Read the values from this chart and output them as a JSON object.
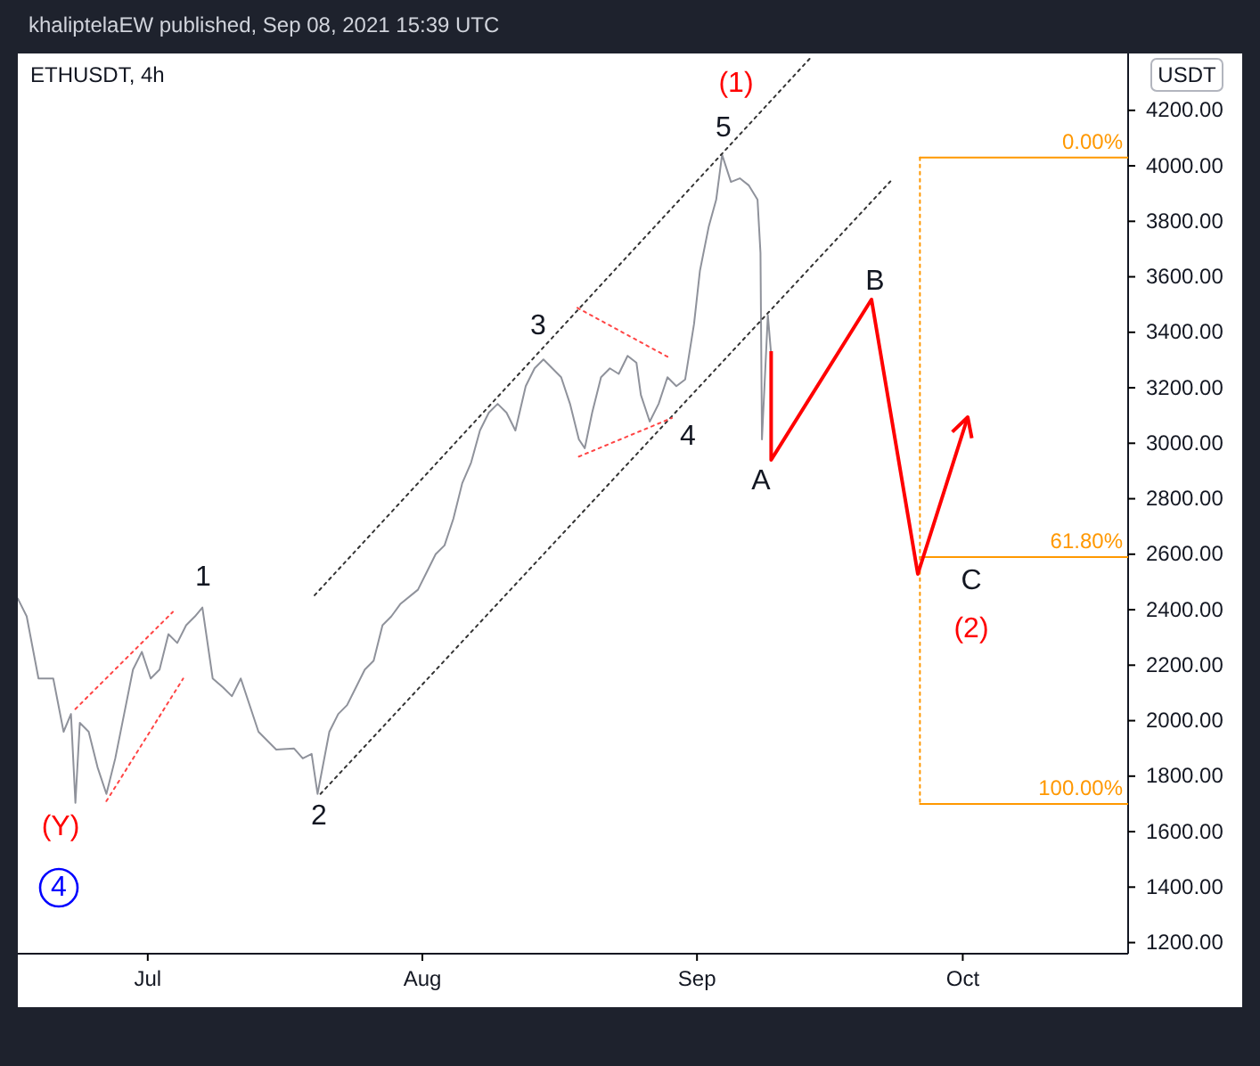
{
  "chart_data": {
    "type": "line",
    "title": "ETHUSDT, 4h",
    "ylabel": "USDT",
    "xlim": [
      "2021-06-16T08:00",
      "2021-10-19T16:00"
    ],
    "xticks": [
      {
        "value": "2021-07-01",
        "label": "Jul"
      },
      {
        "value": "2021-08-01",
        "label": "Aug"
      },
      {
        "value": "2021-09-01",
        "label": "Sep"
      },
      {
        "value": "2021-10-01",
        "label": "Oct"
      }
    ],
    "ylim": [
      1160,
      4405
    ],
    "yticks": [
      {
        "value": 1200,
        "label": "1200.00"
      },
      {
        "value": 1400,
        "label": "1400.00"
      },
      {
        "value": 1600,
        "label": "1600.00"
      },
      {
        "value": 1800,
        "label": "1800.00"
      },
      {
        "value": 2000,
        "label": "2000.00"
      },
      {
        "value": 2200,
        "label": "2200.00"
      },
      {
        "value": 2400,
        "label": "2400.00"
      },
      {
        "value": 2600,
        "label": "2600.00"
      },
      {
        "value": 2800,
        "label": "2800.00"
      },
      {
        "value": 3000,
        "label": "3000.00"
      },
      {
        "value": 3200,
        "label": "3200.00"
      },
      {
        "value": 3400,
        "label": "3400.00"
      },
      {
        "value": 3600,
        "label": "3600.00"
      },
      {
        "value": 3800,
        "label": "3800.00"
      },
      {
        "value": 4000,
        "label": "4000.00"
      },
      {
        "value": 4200,
        "label": "4200.00"
      }
    ],
    "grid": false,
    "legend": false,
    "marker": "none",
    "series": [
      {
        "color": "#8f929b",
        "line_style": "solid",
        "x": [
          "2021-06-16T08:00",
          "2021-06-17T08:00",
          "2021-06-18T16:00",
          "2021-06-20T08:00",
          "2021-06-21T12:00",
          "2021-06-22T08:00",
          "2021-06-22T20:00",
          "2021-06-23T08:00",
          "2021-06-24T08:00",
          "2021-06-25T08:00",
          "2021-06-26T08:00",
          "2021-06-27T08:00",
          "2021-06-28T08:00",
          "2021-06-29T08:00",
          "2021-06-30T08:00",
          "2021-07-01T08:00",
          "2021-07-02T08:00",
          "2021-07-03T08:00",
          "2021-07-04T08:00",
          "2021-07-05T08:00",
          "2021-07-06T08:00",
          "2021-07-07T04:00",
          "2021-07-08T08:00",
          "2021-07-09T12:00",
          "2021-07-10T12:00",
          "2021-07-11T12:00",
          "2021-07-13T12:00",
          "2021-07-14T12:00",
          "2021-07-15T12:00",
          "2021-07-17T12:00",
          "2021-07-18T12:00",
          "2021-07-19T12:00",
          "2021-07-20T04:00",
          "2021-07-21T12:00",
          "2021-07-22T12:00",
          "2021-07-23T12:00",
          "2021-07-24T12:00",
          "2021-07-25T12:00",
          "2021-07-26T12:00",
          "2021-07-27T12:00",
          "2021-07-28T12:00",
          "2021-07-29T12:00",
          "2021-07-31T12:00",
          "2021-08-01T12:00",
          "2021-08-02T12:00",
          "2021-08-03T12:00",
          "2021-08-04T12:00",
          "2021-08-05T12:00",
          "2021-08-06T12:00",
          "2021-08-07T12:00",
          "2021-08-08T12:00",
          "2021-08-09T12:00",
          "2021-08-10T12:00",
          "2021-08-11T12:00",
          "2021-08-12T16:00",
          "2021-08-13T16:00",
          "2021-08-14T16:00",
          "2021-08-15T16:00",
          "2021-08-16T16:00",
          "2021-08-17T16:00",
          "2021-08-18T16:00",
          "2021-08-19T08:00",
          "2021-08-20T04:00",
          "2021-08-21T04:00",
          "2021-08-22T04:00",
          "2021-08-23T04:00",
          "2021-08-24T04:00",
          "2021-08-25T04:00",
          "2021-08-25T16:00",
          "2021-08-26T16:00",
          "2021-08-27T16:00",
          "2021-08-28T16:00",
          "2021-08-29T16:00",
          "2021-08-30T16:00",
          "2021-08-31T16:00",
          "2021-09-01T08:00",
          "2021-09-02T08:00",
          "2021-09-03T04:00",
          "2021-09-03T20:00",
          "2021-09-04T20:00",
          "2021-09-05T20:00",
          "2021-09-06T20:00",
          "2021-09-07T20:00",
          "2021-09-08T04:00",
          "2021-09-08T08:00",
          "2021-09-09T00:00",
          "2021-09-09T08:00"
        ],
        "values": [
          2440,
          2376,
          2152,
          2152,
          1960,
          2024,
          1704,
          1992,
          1960,
          1832,
          1736,
          1864,
          2024,
          2184,
          2248,
          2152,
          2184,
          2312,
          2280,
          2344,
          2376,
          2408,
          2152,
          2120,
          2088,
          2152,
          1960,
          1928,
          1896,
          1900,
          1864,
          1880,
          1736,
          1960,
          2024,
          2056,
          2120,
          2184,
          2216,
          2344,
          2376,
          2420,
          2472,
          2536,
          2600,
          2632,
          2728,
          2856,
          2930,
          3046,
          3110,
          3142,
          3110,
          3046,
          3206,
          3270,
          3302,
          3270,
          3238,
          3142,
          3014,
          2982,
          3110,
          3238,
          3270,
          3250,
          3315,
          3290,
          3174,
          3078,
          3142,
          3238,
          3206,
          3230,
          3430,
          3622,
          3782,
          3878,
          4040,
          3942,
          3955,
          3930,
          3878,
          3686,
          3014,
          3462,
          3334
        ]
      },
      {
        "color": "#333333",
        "line_style": "dotted",
        "x": [
          "2021-07-19T20:00",
          "2021-09-13T20:00"
        ],
        "values": [
          2452,
          4390
        ]
      },
      {
        "color": "#333333",
        "line_style": "dotted",
        "x": [
          "2021-07-20T12:00",
          "2021-09-22T20:00"
        ],
        "values": [
          1736,
          3944
        ]
      },
      {
        "color": "#ff4444",
        "line_style": "dotted",
        "x": [
          "2021-06-22T20:00",
          "2021-07-03T20:00"
        ],
        "values": [
          2042,
          2392
        ]
      },
      {
        "color": "#ff4444",
        "line_style": "dotted",
        "x": [
          "2021-06-26T08:00",
          "2021-07-05T00:00"
        ],
        "values": [
          1710,
          2152
        ]
      },
      {
        "color": "#ff4444",
        "line_style": "dotted",
        "x": [
          "2021-08-18T12:00",
          "2021-08-28T20:00"
        ],
        "values": [
          3488,
          3309
        ]
      },
      {
        "color": "#ff4444",
        "line_style": "dotted",
        "x": [
          "2021-08-18T16:00",
          "2021-08-29T04:00"
        ],
        "values": [
          2952,
          3091
        ]
      },
      {
        "color": "#ff9800",
        "line_style": "dotted",
        "x": [
          "2021-09-26T04:00",
          "2021-09-26T04:00"
        ],
        "values": [
          4030,
          1700
        ]
      },
      {
        "name": "0.00%",
        "color": "#ff9800",
        "line_style": "solid",
        "x": [
          "2021-09-26T04:00",
          "2021-10-19T16:00"
        ],
        "values": [
          4030,
          4030
        ]
      },
      {
        "name": "61.80%",
        "color": "#ff9800",
        "line_style": "solid",
        "x": [
          "2021-09-26T04:00",
          "2021-10-19T16:00"
        ],
        "values": [
          2590,
          2590
        ]
      },
      {
        "name": "100.00%",
        "color": "#ff9800",
        "line_style": "solid",
        "x": [
          "2021-09-26T04:00",
          "2021-10-19T16:00"
        ],
        "values": [
          1700,
          1700
        ]
      }
    ],
    "annotations": [
      "khaliptelaEW published, Sep 08, 2021 15:39 UTC",
      "1",
      "2",
      "3",
      "4",
      "5",
      "(1)",
      "(Y)",
      "4",
      "A",
      "B",
      "C",
      "(2)"
    ]
  }
}
